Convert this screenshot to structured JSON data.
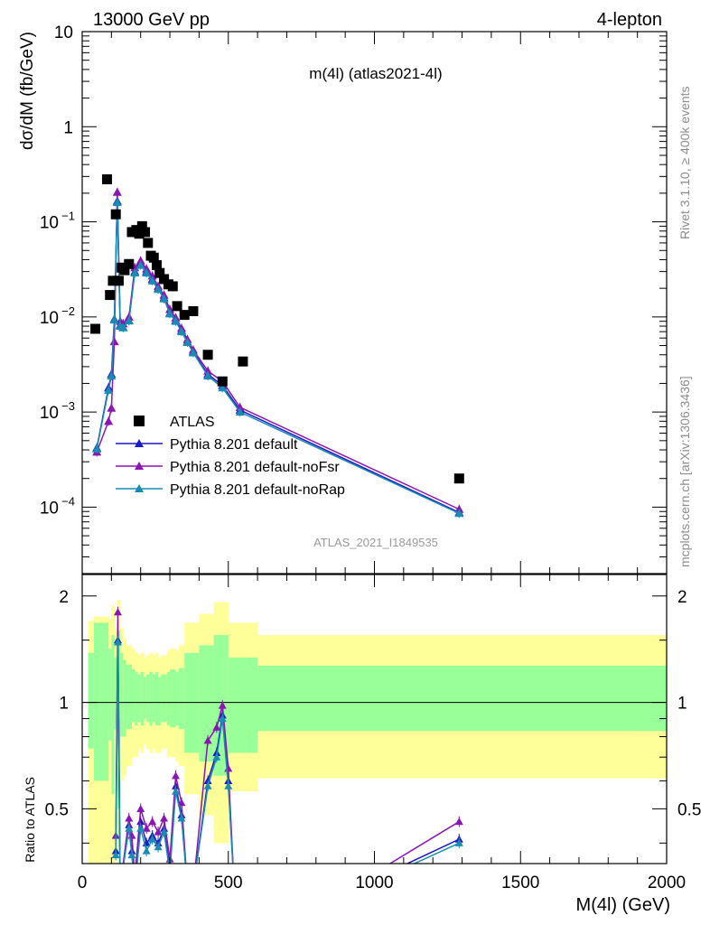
{
  "header": {
    "left_label": "13000 GeV pp",
    "right_label": "4-lepton",
    "plot_title": "m(4l) (atlas2021-4l)",
    "analysis_id": "ATLAS_2021_I1849535",
    "side_rivet": "Rivet 3.1.10, ≥ 400k events",
    "side_mcplots": "mcplots.cern.ch [arXiv:1306.3436]"
  },
  "chart_data": [
    {
      "type": "scatter",
      "panel": "main",
      "xlabel": "M(4l) (GeV)",
      "ylabel": "dσ/dM (fb/GeV)",
      "xlim": [
        0,
        2000
      ],
      "ylim": [
        2e-05,
        10
      ],
      "yscale": "log",
      "legend_placement": "bottom-left",
      "x_ticks": [
        "0",
        "500",
        "1000",
        "1500",
        "2000"
      ],
      "y_ticks": [
        "10",
        "1",
        "10⁻¹",
        "10⁻²",
        "10⁻³",
        "10⁻⁴"
      ],
      "series": [
        {
          "name": "ATLAS",
          "color": "#000000",
          "marker": "square",
          "x": [
            45,
            85,
            95,
            105,
            115,
            125,
            135,
            145,
            160,
            170,
            185,
            195,
            205,
            215,
            225,
            235,
            245,
            255,
            265,
            280,
            295,
            310,
            325,
            350,
            380,
            430,
            480,
            550,
            1290
          ],
          "y": [
            0.0075,
            0.28,
            0.017,
            0.024,
            0.12,
            0.024,
            0.033,
            0.031,
            0.036,
            0.078,
            0.082,
            0.075,
            0.09,
            0.078,
            0.06,
            0.044,
            0.042,
            0.035,
            0.029,
            0.025,
            0.022,
            0.021,
            0.013,
            0.0105,
            0.0115,
            0.004,
            0.0021,
            0.0034,
            0.0002
          ]
        },
        {
          "name": "Pythia 8.201 default",
          "color": "#1a1ac8",
          "marker": "triangle",
          "x": [
            50,
            90,
            100,
            110,
            120,
            130,
            140,
            160,
            180,
            200,
            220,
            240,
            260,
            280,
            300,
            320,
            340,
            360,
            380,
            430,
            480,
            540,
            1290
          ],
          "y": [
            0.00042,
            0.0018,
            0.0025,
            0.0095,
            0.165,
            0.0082,
            0.0078,
            0.0092,
            0.03,
            0.036,
            0.03,
            0.025,
            0.02,
            0.016,
            0.011,
            0.0092,
            0.0072,
            0.0055,
            0.0043,
            0.0025,
            0.0019,
            0.00105,
            8.8e-05
          ]
        },
        {
          "name": "Pythia 8.201 default-noFsr",
          "color": "#8a14b4",
          "marker": "triangle",
          "x": [
            50,
            90,
            100,
            110,
            120,
            130,
            140,
            160,
            180,
            200,
            220,
            240,
            260,
            280,
            300,
            320,
            340,
            360,
            380,
            430,
            480,
            540,
            1290
          ],
          "y": [
            0.00038,
            0.0008,
            0.0011,
            0.0055,
            0.205,
            0.009,
            0.0085,
            0.01,
            0.033,
            0.039,
            0.032,
            0.027,
            0.021,
            0.017,
            0.012,
            0.0098,
            0.0076,
            0.0058,
            0.0045,
            0.0027,
            0.0021,
            0.00112,
            9.5e-05
          ]
        },
        {
          "name": "Pythia 8.201 default-noRap",
          "color": "#1a8cb4",
          "marker": "triangle",
          "x": [
            50,
            90,
            100,
            110,
            120,
            130,
            140,
            160,
            180,
            200,
            220,
            240,
            260,
            280,
            300,
            320,
            340,
            360,
            380,
            430,
            480,
            540,
            1290
          ],
          "y": [
            0.00041,
            0.0017,
            0.0024,
            0.0093,
            0.16,
            0.008,
            0.0077,
            0.0091,
            0.029,
            0.035,
            0.029,
            0.024,
            0.0195,
            0.0155,
            0.0108,
            0.009,
            0.007,
            0.0054,
            0.0042,
            0.0024,
            0.0018,
            0.001,
            8.6e-05
          ]
        }
      ]
    },
    {
      "type": "line",
      "panel": "ratio",
      "xlabel": "M(4l) (GeV)",
      "ylabel": "Ratio to ATLAS",
      "xlim": [
        0,
        2000
      ],
      "ylim": [
        0.35,
        2.3
      ],
      "yscale": "log",
      "y_ticks": [
        "0.5",
        "1",
        "2"
      ],
      "reference_line": 1,
      "bands": {
        "edges": [
          20,
          40,
          90,
          100,
          110,
          120,
          130,
          140,
          150,
          170,
          180,
          190,
          200,
          210,
          220,
          230,
          240,
          250,
          260,
          270,
          290,
          300,
          320,
          330,
          350,
          400,
          450,
          500,
          600,
          2000
        ],
        "inner_lo": [
          0.74,
          0.6,
          0.78,
          0.55,
          0.84,
          0.5,
          0.8,
          0.8,
          0.84,
          0.88,
          0.86,
          0.88,
          0.86,
          0.9,
          0.88,
          0.86,
          0.88,
          0.86,
          0.86,
          0.88,
          0.86,
          0.85,
          0.86,
          0.84,
          0.72,
          0.68,
          0.62,
          0.72,
          0.83
        ],
        "inner_hi": [
          1.38,
          1.68,
          1.42,
          1.55,
          1.34,
          1.6,
          1.38,
          1.32,
          1.28,
          1.24,
          1.22,
          1.2,
          1.22,
          1.18,
          1.2,
          1.22,
          1.2,
          1.22,
          1.18,
          1.2,
          1.22,
          1.24,
          1.22,
          1.25,
          1.38,
          1.45,
          1.55,
          1.34,
          1.27
        ],
        "outer_lo": [
          0.35,
          0.35,
          0.35,
          0.35,
          0.55,
          0.35,
          0.6,
          0.62,
          0.66,
          0.7,
          0.7,
          0.74,
          0.72,
          0.76,
          0.74,
          0.72,
          0.74,
          0.72,
          0.72,
          0.74,
          0.7,
          0.7,
          0.68,
          0.66,
          0.55,
          0.48,
          0.4,
          0.56,
          0.61
        ],
        "outer_hi": [
          1.7,
          1.75,
          1.72,
          1.88,
          1.6,
          1.95,
          1.62,
          1.52,
          1.45,
          1.42,
          1.38,
          1.36,
          1.38,
          1.34,
          1.36,
          1.38,
          1.36,
          1.38,
          1.34,
          1.36,
          1.4,
          1.42,
          1.4,
          1.45,
          1.68,
          1.78,
          1.92,
          1.68,
          1.55
        ],
        "inner_color": "#99ff99",
        "outer_color": "#ffff99"
      },
      "series": [
        {
          "name": "Pythia 8.201 default",
          "color": "#1a1ac8",
          "x": [
            115,
            122,
            130,
            160,
            170,
            180,
            200,
            220,
            240,
            260,
            280,
            300,
            320,
            340,
            360,
            380,
            430,
            460,
            480,
            500,
            520,
            940,
            1290
          ],
          "y": [
            0.38,
            1.5,
            0.3,
            0.45,
            0.38,
            0.3,
            0.46,
            0.4,
            0.42,
            0.4,
            0.44,
            0.34,
            0.58,
            0.48,
            0.3,
            0.3,
            0.6,
            0.72,
            0.92,
            0.6,
            0.3,
            0.3,
            0.41
          ]
        },
        {
          "name": "Pythia 8.201 default-noFsr",
          "color": "#8a14b4",
          "x": [
            115,
            122,
            130,
            160,
            170,
            180,
            200,
            220,
            240,
            260,
            280,
            300,
            320,
            340,
            360,
            380,
            430,
            460,
            480,
            500,
            520,
            920,
            1290
          ],
          "y": [
            0.42,
            1.8,
            0.3,
            0.47,
            0.42,
            0.32,
            0.5,
            0.44,
            0.46,
            0.43,
            0.47,
            0.36,
            0.62,
            0.52,
            0.3,
            0.3,
            0.78,
            0.85,
            0.98,
            0.65,
            0.3,
            0.3,
            0.46
          ]
        },
        {
          "name": "Pythia 8.201 default-noRap",
          "color": "#1a8cb4",
          "x": [
            115,
            122,
            130,
            160,
            170,
            180,
            200,
            220,
            240,
            260,
            280,
            300,
            320,
            340,
            360,
            380,
            430,
            460,
            480,
            500,
            520,
            960,
            1290
          ],
          "y": [
            0.37,
            1.48,
            0.3,
            0.44,
            0.37,
            0.3,
            0.44,
            0.38,
            0.41,
            0.39,
            0.43,
            0.33,
            0.56,
            0.47,
            0.3,
            0.3,
            0.58,
            0.7,
            0.9,
            0.58,
            0.3,
            0.3,
            0.4
          ]
        }
      ]
    }
  ]
}
